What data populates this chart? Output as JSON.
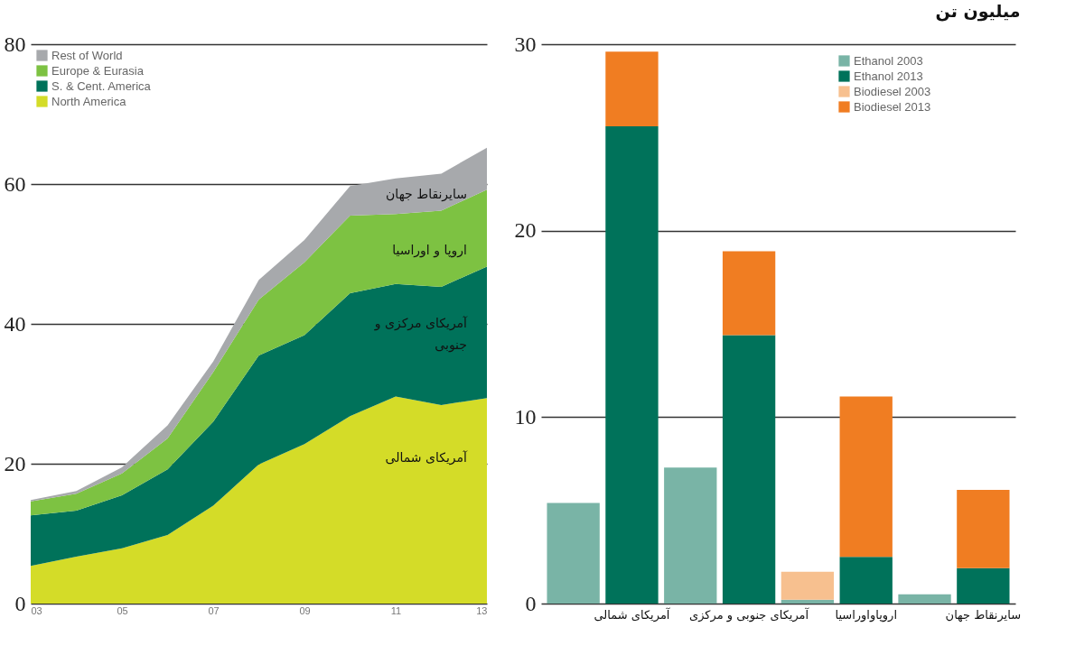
{
  "chart_data": [
    {
      "type": "area",
      "stacked": true,
      "x": [
        2003,
        2004,
        2005,
        2006,
        2007,
        2008,
        2009,
        2010,
        2011,
        2012,
        2013
      ],
      "xlim": [
        2003,
        2013
      ],
      "xticks": [
        {
          "value": 2003,
          "label": "03"
        },
        {
          "value": 2005,
          "label": "05"
        },
        {
          "value": 2007,
          "label": "07"
        },
        {
          "value": 2009,
          "label": "09"
        },
        {
          "value": 2011,
          "label": "11"
        },
        {
          "value": 2013,
          "label": "13"
        }
      ],
      "ylim": [
        0,
        80
      ],
      "yticks": [
        0,
        20,
        40,
        60,
        80
      ],
      "grid": "y",
      "legend": "top left",
      "series": [
        {
          "name": "North America",
          "color": "#d4dc28",
          "values": [
            5.4,
            6.7,
            7.9,
            9.8,
            14,
            19.9,
            22.8,
            26.8,
            29.6,
            28.4,
            29.4
          ]
        },
        {
          "name": "S. & Cent. America",
          "color": "#00725a",
          "values": [
            7.2,
            6.6,
            7.6,
            9.4,
            12,
            15.6,
            15.6,
            17.6,
            16.1,
            16.9,
            18.8
          ]
        },
        {
          "name": "Europe & Eurasia",
          "color": "#7dc242",
          "values": [
            2,
            2.4,
            3.1,
            4.4,
            7.1,
            8,
            10.4,
            11.1,
            10,
            10.9,
            11
          ]
        },
        {
          "name": "Rest of World",
          "color": "#a7a9ac",
          "values": [
            0.2,
            0.4,
            0.9,
            1.9,
            1.5,
            2.8,
            3.2,
            4.2,
            5.1,
            5.3,
            6
          ]
        }
      ],
      "annotations": [
        "سایرنقاط جهان",
        "اروپا و اوراسیا",
        "آمریکای مرکزی و\nجنوبی",
        "آمریکای شمالی"
      ]
    },
    {
      "type": "bar",
      "stacked": true,
      "title": "میلیون تن",
      "categories": [
        null,
        "آمریکای شمالی",
        null,
        "آمریکای جنوبی و مرکزی",
        null,
        "اروپاواوراسیا",
        null,
        "سایرنقاط جهان"
      ],
      "ylim": [
        0,
        30
      ],
      "yticks": [
        0,
        10,
        20,
        30
      ],
      "grid": "y",
      "legend": "top right",
      "series": [
        {
          "name": "Ethanol 2003",
          "color": "#79b4a6",
          "values": [
            5.4,
            null,
            7.3,
            null,
            0.2,
            null,
            0.5,
            null
          ]
        },
        {
          "name": "Ethanol 2013",
          "color": "#00725a",
          "values": [
            null,
            25.6,
            null,
            14.4,
            null,
            2.5,
            null,
            1.9
          ]
        },
        {
          "name": "Biodiesel 2003",
          "color": "#f7c08f",
          "values": [
            null,
            null,
            null,
            null,
            1.5,
            null,
            null,
            null
          ]
        },
        {
          "name": "Biodiesel 2013",
          "color": "#f07d22",
          "values": [
            null,
            4,
            null,
            4.5,
            null,
            8.6,
            null,
            4.2
          ]
        }
      ]
    }
  ]
}
